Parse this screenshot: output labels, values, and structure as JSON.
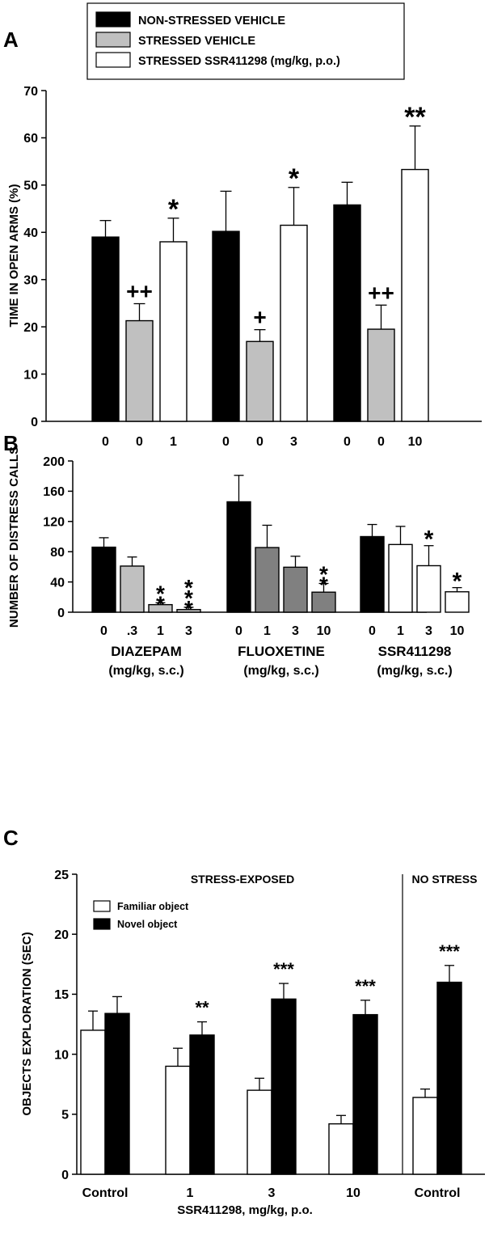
{
  "figure": {
    "colors": {
      "black": "#000000",
      "light_gray": "#c0c0c0",
      "dark_gray": "#808080",
      "white": "#ffffff"
    }
  },
  "chart_data": [
    {
      "panel": "A",
      "type": "bar",
      "ylabel": "TIME IN OPEN ARMS (%)",
      "ylim": [
        0,
        70
      ],
      "yticks": [
        0,
        10,
        20,
        30,
        40,
        50,
        60,
        70
      ],
      "legend_placement": "top",
      "legend": [
        {
          "label": "NON-STRESSED VEHICLE",
          "color": "#000000"
        },
        {
          "label": "STRESSED VEHICLE",
          "color": "#c0c0c0"
        },
        {
          "label": "STRESSED SSR411298 (mg/kg, p.o.)",
          "color": "#ffffff"
        }
      ],
      "groups": [
        {
          "bars": [
            {
              "label": "0",
              "value": 39,
              "error": 3.5,
              "color": "#000000",
              "sig": ""
            },
            {
              "label": "0",
              "value": 21.3,
              "error": 3.6,
              "color": "#c0c0c0",
              "sig": "++"
            },
            {
              "label": "1",
              "value": 38,
              "error": 5,
              "color": "#ffffff",
              "sig": "*"
            }
          ]
        },
        {
          "bars": [
            {
              "label": "0",
              "value": 40.2,
              "error": 8.5,
              "color": "#000000",
              "sig": ""
            },
            {
              "label": "0",
              "value": 16.9,
              "error": 2.5,
              "color": "#c0c0c0",
              "sig": "+"
            },
            {
              "label": "3",
              "value": 41.5,
              "error": 8,
              "color": "#ffffff",
              "sig": "*"
            }
          ]
        },
        {
          "bars": [
            {
              "label": "0",
              "value": 45.8,
              "error": 4.8,
              "color": "#000000",
              "sig": ""
            },
            {
              "label": "0",
              "value": 19.5,
              "error": 5.1,
              "color": "#c0c0c0",
              "sig": "++"
            },
            {
              "label": "10",
              "value": 53.3,
              "error": 9.2,
              "color": "#ffffff",
              "sig": "**"
            }
          ]
        }
      ]
    },
    {
      "panel": "B",
      "type": "bar",
      "ylabel": "NUMBER OF DISTRESS CALLS",
      "ylim": [
        0,
        200
      ],
      "yticks": [
        0,
        40,
        80,
        120,
        160,
        200
      ],
      "groups": [
        {
          "name": "DIAZEPAM",
          "unit": "(mg/kg, s.c.)",
          "bars": [
            {
              "label": "0",
              "value": 86,
              "error": 12.5,
              "color": "#000000",
              "sig": ""
            },
            {
              "label": ".3",
              "value": 61,
              "error": 12,
              "color": "#c0c0c0",
              "sig": ""
            },
            {
              "label": "1",
              "value": 10,
              "error": 2.5,
              "color": "#c0c0c0",
              "sig": "**"
            },
            {
              "label": "3",
              "value": 3.5,
              "error": 3,
              "color": "#c0c0c0",
              "sig": "***"
            }
          ]
        },
        {
          "name": "FLUOXETINE",
          "unit": "(mg/kg, s.c.)",
          "bars": [
            {
              "label": "0",
              "value": 146,
              "error": 35,
              "color": "#000000",
              "sig": ""
            },
            {
              "label": "1",
              "value": 85.5,
              "error": 29.5,
              "color": "#808080",
              "sig": ""
            },
            {
              "label": "3",
              "value": 59.5,
              "error": 14.5,
              "color": "#808080",
              "sig": ""
            },
            {
              "label": "10",
              "value": 26.5,
              "error": 11.5,
              "color": "#808080",
              "sig": "**"
            }
          ]
        },
        {
          "name": "SSR411298",
          "unit": "(mg/kg, s.c.)",
          "bars": [
            {
              "label": "0",
              "value": 100,
              "error": 16,
              "color": "#000000",
              "sig": ""
            },
            {
              "label": "1",
              "value": 89.5,
              "error": 24,
              "color": "#ffffff",
              "sig": ""
            },
            {
              "label": "3",
              "value": 61.5,
              "error": 26.5,
              "color": "#ffffff",
              "sig": "*"
            },
            {
              "label": "10",
              "value": 27,
              "error": 5.5,
              "color": "#ffffff",
              "sig": "*"
            }
          ]
        }
      ]
    },
    {
      "panel": "C",
      "type": "bar",
      "ylabel": "OBJECTS EXPLORATION (SEC)",
      "xlabel": "SSR411298, mg/kg, p.o.",
      "ylim": [
        0,
        25
      ],
      "yticks": [
        0,
        5,
        10,
        15,
        20,
        25
      ],
      "legend_placement": "top-left",
      "sections": [
        "STRESS-EXPOSED",
        "NO STRESS"
      ],
      "series": [
        {
          "name": "Familiar object",
          "color": "#ffffff"
        },
        {
          "name": "Novel object",
          "color": "#000000"
        }
      ],
      "categories": [
        "Control",
        "1",
        "3",
        "10",
        "Control"
      ],
      "familiar": [
        12.0,
        9.0,
        7.0,
        4.2,
        6.4
      ],
      "familiar_error": [
        1.6,
        1.5,
        1.0,
        0.7,
        0.7
      ],
      "novel": [
        13.4,
        11.6,
        14.6,
        13.3,
        16.0
      ],
      "novel_error": [
        1.4,
        1.1,
        1.3,
        1.2,
        1.4
      ],
      "sig": [
        "",
        "**",
        "***",
        "***",
        "***"
      ]
    }
  ]
}
